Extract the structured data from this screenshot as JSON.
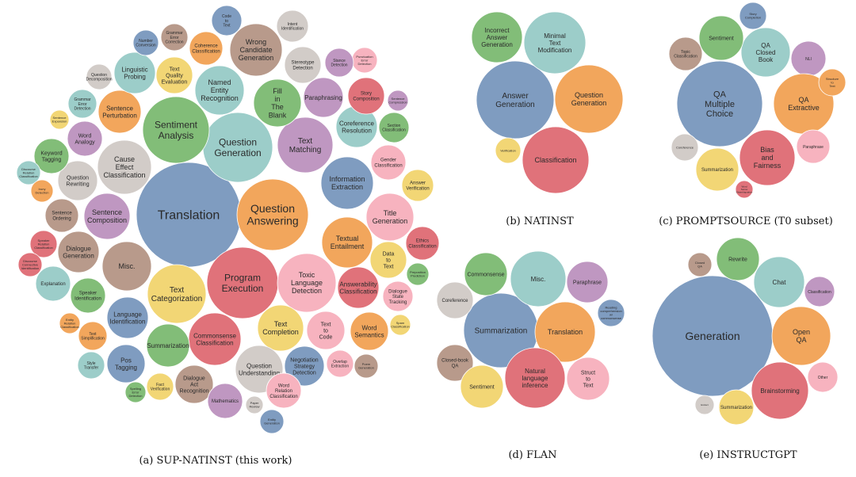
{
  "palette": {
    "blue": "#7f9cc0",
    "teal": "#9ccdc9",
    "orange": "#f2a65c",
    "green": "#82bd78",
    "red": "#e0727a",
    "pink": "#f7b3bf",
    "purple": "#bf97c1",
    "yellow": "#f2d675",
    "brown": "#b89a8b",
    "gray": "#d2ccc8"
  },
  "panels": [
    {
      "id": "supnatinst",
      "caption": "(a) SUP-NATINST (this work)",
      "bubbles": [
        {
          "label": "Translation",
          "color": "blue"
        },
        {
          "label": "Question Answering",
          "color": "orange"
        },
        {
          "label": "Program Execution",
          "color": "red"
        },
        {
          "label": "Question Generation",
          "color": "teal"
        },
        {
          "label": "Sentiment Analysis",
          "color": "green"
        },
        {
          "label": "Toxic Language Detection",
          "color": "pink"
        },
        {
          "label": "Text Categorization",
          "color": "yellow"
        },
        {
          "label": "Misc.",
          "color": "brown"
        },
        {
          "label": "Cause Effect Classification",
          "color": "gray"
        },
        {
          "label": "Text Matching",
          "color": "purple"
        },
        {
          "label": "Named Entity Recognition",
          "color": "teal"
        },
        {
          "label": "Wrong Candidate Generation",
          "color": "brown"
        },
        {
          "label": "Fill in The Blank",
          "color": "green"
        },
        {
          "label": "Information Extraction",
          "color": "blue"
        },
        {
          "label": "Textual Entailment",
          "color": "orange"
        },
        {
          "label": "Commonsense Classification",
          "color": "red"
        },
        {
          "label": "Text Completion",
          "color": "yellow"
        },
        {
          "label": "Question Understanding",
          "color": "gray"
        },
        {
          "label": "Title Generation",
          "color": "pink"
        },
        {
          "label": "Sentence Composition",
          "color": "purple"
        },
        {
          "label": "Dialogue Generation",
          "color": "brown"
        },
        {
          "label": "Language Identification",
          "color": "blue"
        },
        {
          "label": "Summarization",
          "color": "green"
        },
        {
          "label": "Pos Tagging",
          "color": "blue"
        },
        {
          "label": "Dialogue Act Recognition",
          "color": "brown"
        },
        {
          "label": "Answerability Classification",
          "color": "red"
        },
        {
          "label": "Word Semantics",
          "color": "orange"
        },
        {
          "label": "Text to Code",
          "color": "pink"
        },
        {
          "label": "Negotiation Strategy Detection",
          "color": "blue"
        },
        {
          "label": "Word Relation Classification",
          "color": "pink"
        },
        {
          "label": "Coreference Resolution",
          "color": "teal"
        },
        {
          "label": "Paraphrasing",
          "color": "purple"
        },
        {
          "label": "Story Composition",
          "color": "red"
        },
        {
          "label": "Sentence Perturbation",
          "color": "orange"
        },
        {
          "label": "Linguistic Probing",
          "color": "teal"
        },
        {
          "label": "Text Quality Evaluation",
          "color": "yellow"
        },
        {
          "label": "Question Rewriting",
          "color": "gray"
        },
        {
          "label": "Word Analogy",
          "color": "purple"
        },
        {
          "label": "Keyword Tagging",
          "color": "green"
        },
        {
          "label": "Data to Text",
          "color": "yellow"
        },
        {
          "label": "Ethics Classification",
          "color": "red"
        },
        {
          "label": "Dialogue State Tracking",
          "color": "pink"
        },
        {
          "label": "Gender Classification",
          "color": "pink"
        },
        {
          "label": "Answer Verification",
          "color": "yellow"
        },
        {
          "label": "Section Classification",
          "color": "green"
        },
        {
          "label": "Stereotype Detection",
          "color": "gray"
        },
        {
          "label": "Intent Identification",
          "color": "gray"
        },
        {
          "label": "Code to Text",
          "color": "blue"
        },
        {
          "label": "Coherence Classification",
          "color": "orange"
        },
        {
          "label": "Grammar Error Correction",
          "color": "brown"
        },
        {
          "label": "Number Conversion",
          "color": "blue"
        },
        {
          "label": "Question Decomposition",
          "color": "gray"
        },
        {
          "label": "Grammar Error Detection",
          "color": "teal"
        },
        {
          "label": "Sentence Expansion",
          "color": "yellow"
        },
        {
          "label": "Discourse Relation Classification",
          "color": "teal"
        },
        {
          "label": "Irony Detection",
          "color": "orange"
        },
        {
          "label": "Sentence Ordering",
          "color": "brown"
        },
        {
          "label": "Speaker Relation Classification",
          "color": "red"
        },
        {
          "label": "Discourse Connective Identification",
          "color": "red"
        },
        {
          "label": "Explanation",
          "color": "teal"
        },
        {
          "label": "Speaker Identification",
          "color": "green"
        },
        {
          "label": "Entity Relation Classification",
          "color": "orange"
        },
        {
          "label": "Text Simplification",
          "color": "orange"
        },
        {
          "label": "Style Transfer",
          "color": "teal"
        },
        {
          "label": "Spelling Error Detection",
          "color": "green"
        },
        {
          "label": "Fact Verification",
          "color": "yellow"
        },
        {
          "label": "Mathematics",
          "color": "purple"
        },
        {
          "label": "Paper Review",
          "color": "gray"
        },
        {
          "label": "Entity Generation",
          "color": "blue"
        },
        {
          "label": "Overlap Extraction",
          "color": "pink"
        },
        {
          "label": "Punctuation Error Detection",
          "color": "pink"
        },
        {
          "label": "Stance Detection",
          "color": "purple"
        },
        {
          "label": "Sentence Compression",
          "color": "purple"
        },
        {
          "label": "Preposition Prediction",
          "color": "green"
        },
        {
          "label": "Spam Classification",
          "color": "yellow"
        },
        {
          "label": "Poem Generation",
          "color": "brown"
        }
      ]
    },
    {
      "id": "natinst",
      "caption": "(b) NATINST",
      "bubbles": [
        {
          "label": "Answer Generation",
          "color": "blue"
        },
        {
          "label": "Incorrect Answer Generation",
          "color": "green"
        },
        {
          "label": "Minimal Text Modification",
          "color": "teal"
        },
        {
          "label": "Question Generation",
          "color": "orange"
        },
        {
          "label": "Classification",
          "color": "red"
        },
        {
          "label": "Verification",
          "color": "yellow"
        }
      ]
    },
    {
      "id": "promptsource",
      "caption": "(c) PROMPTSOURCE (T0 subset)",
      "bubbles": [
        {
          "label": "QA Multiple Choice",
          "color": "blue"
        },
        {
          "label": "QA Closed Book",
          "color": "teal"
        },
        {
          "label": "Sentiment",
          "color": "green"
        },
        {
          "label": "Story Completion",
          "color": "blue"
        },
        {
          "label": "NLI",
          "color": "purple"
        },
        {
          "label": "Topic Classification",
          "color": "brown"
        },
        {
          "label": "QA Extractive",
          "color": "orange"
        },
        {
          "label": "Structure to Text",
          "color": "orange"
        },
        {
          "label": "Coreference",
          "color": "gray"
        },
        {
          "label": "Summarization",
          "color": "yellow"
        },
        {
          "label": "Bias and Fairness",
          "color": "red"
        },
        {
          "label": "Paraphrase",
          "color": "pink"
        },
        {
          "label": "Word Sense Disambiguation",
          "color": "red"
        }
      ]
    },
    {
      "id": "flan",
      "caption": "(d) FLAN",
      "bubbles": [
        {
          "label": "Summarization",
          "color": "blue"
        },
        {
          "label": "Commonsense",
          "color": "green"
        },
        {
          "label": "Misc.",
          "color": "teal"
        },
        {
          "label": "Paraphrase",
          "color": "purple"
        },
        {
          "label": "Coreference",
          "color": "gray"
        },
        {
          "label": "Reading comprehension w/ commonsense",
          "color": "blue"
        },
        {
          "label": "Translation",
          "color": "orange"
        },
        {
          "label": "Closed-book QA",
          "color": "brown"
        },
        {
          "label": "Sentiment",
          "color": "yellow"
        },
        {
          "label": "Natural language inference",
          "color": "red"
        },
        {
          "label": "Struct to Text",
          "color": "pink"
        }
      ]
    },
    {
      "id": "instructgpt",
      "caption": "(e) INSTRUCTGPT",
      "bubbles": [
        {
          "label": "Generation",
          "color": "blue"
        },
        {
          "label": "Closed QA",
          "color": "brown"
        },
        {
          "label": "Rewrite",
          "color": "green"
        },
        {
          "label": "Chat",
          "color": "teal"
        },
        {
          "label": "Classification",
          "color": "purple"
        },
        {
          "label": "Open QA",
          "color": "orange"
        },
        {
          "label": "Other",
          "color": "pink"
        },
        {
          "label": "Brainstorming",
          "color": "red"
        },
        {
          "label": "Summarization",
          "color": "yellow"
        },
        {
          "label": "Extract",
          "color": "gray"
        }
      ]
    }
  ]
}
